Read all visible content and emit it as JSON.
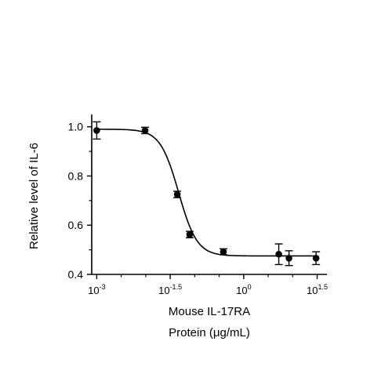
{
  "chart_data": {
    "type": "scatter",
    "title": "",
    "xlabel_lines": [
      "Mouse IL-17RA",
      "Protein (μg/mL)"
    ],
    "ylabel": "Relative level of IL-6",
    "x_scale": "log",
    "xlim": [
      0.00079,
      50
    ],
    "ylim": [
      0.4,
      1.05
    ],
    "x_ticks": [
      {
        "value": 0.001,
        "base": "10",
        "exp": "-3"
      },
      {
        "value": 0.0316,
        "base": "10",
        "exp": "-1.5"
      },
      {
        "value": 1,
        "base": "10",
        "exp": "0"
      },
      {
        "value": 31.6,
        "base": "10",
        "exp": "1.5"
      }
    ],
    "x_minor_ticks": [
      0.00316,
      0.01,
      0.1,
      0.316,
      3.16,
      10
    ],
    "y_ticks": [
      {
        "value": 0.4,
        "label": "0.4"
      },
      {
        "value": 0.6,
        "label": "0.6"
      },
      {
        "value": 0.8,
        "label": "0.8"
      },
      {
        "value": 1.0,
        "label": "1.0"
      }
    ],
    "y_minor_ticks": [
      0.5,
      0.7,
      0.9
    ],
    "grid": false,
    "legend": "none",
    "series": [
      {
        "points": [
          {
            "x": 0.001,
            "y": 0.985,
            "err": 0.035
          },
          {
            "x": 0.0097,
            "y": 0.985,
            "err": 0.013
          },
          {
            "x": 0.044,
            "y": 0.725,
            "err": 0.013
          },
          {
            "x": 0.079,
            "y": 0.562,
            "err": 0.013
          },
          {
            "x": 0.385,
            "y": 0.492,
            "err": 0.012
          },
          {
            "x": 5.2,
            "y": 0.482,
            "err": 0.042
          },
          {
            "x": 8.4,
            "y": 0.466,
            "err": 0.03
          },
          {
            "x": 30,
            "y": 0.466,
            "err": 0.026
          }
        ],
        "fit": {
          "bottom": 0.475,
          "top": 0.99,
          "ec50": 0.047,
          "hill": 2.3
        },
        "color": "#000000"
      }
    ]
  }
}
